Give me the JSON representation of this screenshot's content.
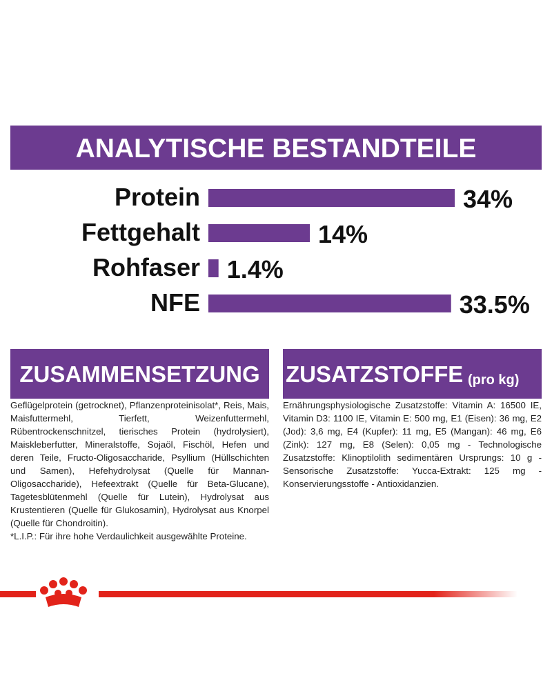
{
  "chart_data": {
    "type": "bar",
    "orientation": "horizontal",
    "title": "ANALYTISCHE BESTANDTEILE",
    "categories": [
      "Protein",
      "Fettgehalt",
      "Rohfaser",
      "NFE"
    ],
    "values": [
      34,
      14,
      1.4,
      33.5
    ],
    "value_labels": [
      "34%",
      "14%",
      "1.4%",
      "33.5%"
    ],
    "color": "#6c3b90"
  },
  "composition": {
    "title": "ZUSAMMENSETZUNG",
    "text": "Geflügelprotein (getrocknet), Pflanzenproteinisolat*, Reis, Mais, Maisfuttermehl, Tierfett, Weizenfuttermehl, Rübentrockenschnitzel, tierisches Protein (hydrolysiert), Maiskleberfutter, Mineralstoffe, Sojaöl, Fischöl, Hefen und deren Teile, Fructo-Oligosaccharide, Psyllium (Hüllschichten und Samen), Hefehydrolysat (Quelle für Mannan-Oligosaccharide), Hefeextrakt (Quelle für Beta-Glucane), Tagetesblütenmehl (Quelle für Lutein), Hydrolysat aus Krustentieren (Quelle für Glukosamin), Hydrolysat aus Knorpel (Quelle für Chondroitin).",
    "footnote": "*L.I.P.: Für ihre hohe Verdaulichkeit ausgewählte Proteine."
  },
  "additives": {
    "title": "ZUSATZSTOFFE",
    "unit": "(pro kg)",
    "text": "Ernährungsphysiologische Zusatzstoffe: Vitamin A: 16500 IE, Vitamin D3: 1100 IE, Vitamin E: 500 mg, E1 (Eisen): 36 mg, E2 (Jod): 3,6 mg, E4 (Kupfer): 11 mg, E5 (Mangan): 46 mg, E6 (Zink): 127 mg, E8 (Selen): 0,05 mg - Technologische Zusatzstoffe: Klinoptilolith sedimentären Ursprungs: 10 g - Sensorische Zusatzstoffe: Yucca-Extrakt: 125 mg - Konservierungsstoffe - Antioxidanzien."
  }
}
